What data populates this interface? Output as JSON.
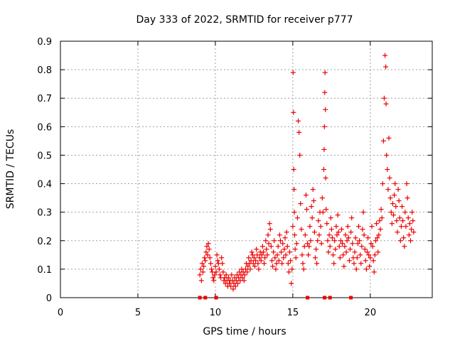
{
  "chart_data": {
    "type": "scatter",
    "title": "Day 333 of 2022, SRMTID for receiver p777",
    "xlabel": "GPS time / hours",
    "ylabel": "SRMTID / TECUs",
    "xlim": [
      0,
      24
    ],
    "ylim": [
      0,
      0.9
    ],
    "xticks": [
      0,
      5,
      10,
      15,
      20
    ],
    "yticks": [
      0,
      0.1,
      0.2,
      0.3,
      0.4,
      0.5,
      0.6,
      0.7,
      0.8,
      0.9
    ],
    "grid": true,
    "marker": "+",
    "color": "#ee0000",
    "gap_markers_x": [
      9.0,
      9.35,
      10.05,
      15.95,
      17.05,
      17.4,
      18.75
    ],
    "series": [
      {
        "name": "SRMTID",
        "points": [
          [
            9.0,
            0.08
          ],
          [
            9.05,
            0.1
          ],
          [
            9.1,
            0.06
          ],
          [
            9.15,
            0.12
          ],
          [
            9.2,
            0.09
          ],
          [
            9.25,
            0.11
          ],
          [
            9.3,
            0.14
          ],
          [
            9.35,
            0.13
          ],
          [
            9.4,
            0.16
          ],
          [
            9.45,
            0.18
          ],
          [
            9.5,
            0.15
          ],
          [
            9.55,
            0.19
          ],
          [
            9.6,
            0.17
          ],
          [
            9.65,
            0.14
          ],
          [
            9.7,
            0.12
          ],
          [
            9.75,
            0.1
          ],
          [
            9.8,
            0.09
          ],
          [
            9.85,
            0.07
          ],
          [
            9.9,
            0.06
          ],
          [
            9.95,
            0.08
          ],
          [
            10.0,
            0.11
          ],
          [
            10.05,
            0.09
          ],
          [
            10.1,
            0.15
          ],
          [
            10.15,
            0.13
          ],
          [
            10.2,
            0.12
          ],
          [
            10.25,
            0.1
          ],
          [
            10.3,
            0.08
          ],
          [
            10.35,
            0.07
          ],
          [
            10.4,
            0.14
          ],
          [
            10.45,
            0.12
          ],
          [
            10.5,
            0.09
          ],
          [
            10.55,
            0.06
          ],
          [
            10.6,
            0.07
          ],
          [
            10.65,
            0.05
          ],
          [
            10.7,
            0.08
          ],
          [
            10.75,
            0.06
          ],
          [
            10.8,
            0.04
          ],
          [
            10.85,
            0.07
          ],
          [
            10.9,
            0.05
          ],
          [
            10.95,
            0.06
          ],
          [
            11.0,
            0.04
          ],
          [
            11.05,
            0.08
          ],
          [
            11.1,
            0.06
          ],
          [
            11.15,
            0.03
          ],
          [
            11.2,
            0.05
          ],
          [
            11.25,
            0.07
          ],
          [
            11.3,
            0.04
          ],
          [
            11.35,
            0.06
          ],
          [
            11.4,
            0.08
          ],
          [
            11.45,
            0.05
          ],
          [
            11.5,
            0.07
          ],
          [
            11.55,
            0.09
          ],
          [
            11.6,
            0.06
          ],
          [
            11.65,
            0.08
          ],
          [
            11.7,
            0.1
          ],
          [
            11.75,
            0.07
          ],
          [
            11.8,
            0.09
          ],
          [
            11.85,
            0.06
          ],
          [
            11.9,
            0.08
          ],
          [
            11.95,
            0.1
          ],
          [
            12.0,
            0.12
          ],
          [
            12.05,
            0.09
          ],
          [
            12.1,
            0.11
          ],
          [
            12.15,
            0.14
          ],
          [
            12.2,
            0.12
          ],
          [
            12.25,
            0.1
          ],
          [
            12.3,
            0.13
          ],
          [
            12.35,
            0.16
          ],
          [
            12.4,
            0.15
          ],
          [
            12.45,
            0.12
          ],
          [
            12.5,
            0.14
          ],
          [
            12.55,
            0.11
          ],
          [
            12.6,
            0.13
          ],
          [
            12.65,
            0.17
          ],
          [
            12.7,
            0.15
          ],
          [
            12.75,
            0.12
          ],
          [
            12.8,
            0.1
          ],
          [
            12.85,
            0.14
          ],
          [
            12.9,
            0.16
          ],
          [
            12.95,
            0.13
          ],
          [
            13.0,
            0.15
          ],
          [
            13.05,
            0.18
          ],
          [
            13.1,
            0.16
          ],
          [
            13.15,
            0.12
          ],
          [
            13.2,
            0.14
          ],
          [
            13.25,
            0.2
          ],
          [
            13.3,
            0.17
          ],
          [
            13.35,
            0.15
          ],
          [
            13.4,
            0.22
          ],
          [
            13.45,
            0.19
          ],
          [
            13.5,
            0.26
          ],
          [
            13.55,
            0.24
          ],
          [
            13.6,
            0.18
          ],
          [
            13.65,
            0.13
          ],
          [
            13.7,
            0.11
          ],
          [
            13.75,
            0.16
          ],
          [
            13.8,
            0.2
          ],
          [
            13.85,
            0.14
          ],
          [
            13.9,
            0.1
          ],
          [
            13.95,
            0.12
          ],
          [
            14.0,
            0.15
          ],
          [
            14.05,
            0.18
          ],
          [
            14.1,
            0.13
          ],
          [
            14.15,
            0.22
          ],
          [
            14.2,
            0.2
          ],
          [
            14.25,
            0.16
          ],
          [
            14.3,
            0.12
          ],
          [
            14.35,
            0.19
          ],
          [
            14.4,
            0.14
          ],
          [
            14.45,
            0.17
          ],
          [
            14.5,
            0.21
          ],
          [
            14.55,
            0.15
          ],
          [
            14.6,
            0.23
          ],
          [
            14.65,
            0.18
          ],
          [
            14.7,
            0.12
          ],
          [
            14.75,
            0.09
          ],
          [
            14.8,
            0.16
          ],
          [
            14.85,
            0.13
          ],
          [
            14.9,
            0.05
          ],
          [
            14.95,
            0.1
          ],
          [
            15.0,
            0.25
          ],
          [
            15.02,
            0.79
          ],
          [
            15.04,
            0.65
          ],
          [
            15.06,
            0.45
          ],
          [
            15.08,
            0.38
          ],
          [
            15.1,
            0.3
          ],
          [
            15.12,
            0.22
          ],
          [
            15.15,
            0.17
          ],
          [
            15.2,
            0.14
          ],
          [
            15.25,
            0.19
          ],
          [
            15.3,
            0.28
          ],
          [
            15.35,
            0.62
          ],
          [
            15.4,
            0.58
          ],
          [
            15.45,
            0.5
          ],
          [
            15.5,
            0.33
          ],
          [
            15.55,
            0.24
          ],
          [
            15.6,
            0.15
          ],
          [
            15.65,
            0.12
          ],
          [
            15.7,
            0.1
          ],
          [
            15.75,
            0.18
          ],
          [
            15.8,
            0.22
          ],
          [
            15.85,
            0.36
          ],
          [
            15.9,
            0.31
          ],
          [
            15.95,
            0.19
          ],
          [
            16.0,
            0.15
          ],
          [
            16.05,
            0.18
          ],
          [
            16.1,
            0.25
          ],
          [
            16.15,
            0.2
          ],
          [
            16.2,
            0.32
          ],
          [
            16.25,
            0.28
          ],
          [
            16.3,
            0.38
          ],
          [
            16.35,
            0.34
          ],
          [
            16.4,
            0.23
          ],
          [
            16.45,
            0.14
          ],
          [
            16.5,
            0.17
          ],
          [
            16.55,
            0.12
          ],
          [
            16.6,
            0.2
          ],
          [
            16.65,
            0.27
          ],
          [
            16.7,
            0.22
          ],
          [
            16.75,
            0.3
          ],
          [
            16.8,
            0.25
          ],
          [
            16.85,
            0.19
          ],
          [
            16.9,
            0.35
          ],
          [
            16.95,
            0.3
          ],
          [
            17.0,
            0.45
          ],
          [
            17.02,
            0.52
          ],
          [
            17.04,
            0.6
          ],
          [
            17.06,
            0.72
          ],
          [
            17.08,
            0.79
          ],
          [
            17.1,
            0.66
          ],
          [
            17.12,
            0.42
          ],
          [
            17.15,
            0.31
          ],
          [
            17.2,
            0.26
          ],
          [
            17.25,
            0.2
          ],
          [
            17.3,
            0.16
          ],
          [
            17.35,
            0.22
          ],
          [
            17.4,
            0.18
          ],
          [
            17.45,
            0.28
          ],
          [
            17.5,
            0.24
          ],
          [
            17.55,
            0.21
          ],
          [
            17.6,
            0.15
          ],
          [
            17.65,
            0.12
          ],
          [
            17.7,
            0.2
          ],
          [
            17.75,
            0.17
          ],
          [
            17.8,
            0.25
          ],
          [
            17.85,
            0.22
          ],
          [
            17.9,
            0.29
          ],
          [
            17.95,
            0.23
          ],
          [
            18.0,
            0.18
          ],
          [
            18.05,
            0.14
          ],
          [
            18.1,
            0.2
          ],
          [
            18.15,
            0.24
          ],
          [
            18.2,
            0.19
          ],
          [
            18.25,
            0.15
          ],
          [
            18.3,
            0.11
          ],
          [
            18.35,
            0.18
          ],
          [
            18.4,
            0.22
          ],
          [
            18.45,
            0.16
          ],
          [
            18.5,
            0.2
          ],
          [
            18.55,
            0.25
          ],
          [
            18.6,
            0.21
          ],
          [
            18.65,
            0.13
          ],
          [
            18.7,
            0.17
          ],
          [
            18.75,
            0.23
          ],
          [
            18.8,
            0.28
          ],
          [
            18.85,
            0.19
          ],
          [
            18.9,
            0.14
          ],
          [
            18.95,
            0.12
          ],
          [
            19.0,
            0.16
          ],
          [
            19.05,
            0.21
          ],
          [
            19.1,
            0.1
          ],
          [
            19.15,
            0.14
          ],
          [
            19.2,
            0.19
          ],
          [
            19.25,
            0.25
          ],
          [
            19.3,
            0.2
          ],
          [
            19.35,
            0.15
          ],
          [
            19.4,
            0.12
          ],
          [
            19.45,
            0.18
          ],
          [
            19.5,
            0.24
          ],
          [
            19.55,
            0.3
          ],
          [
            19.6,
            0.22
          ],
          [
            19.65,
            0.17
          ],
          [
            19.7,
            0.13
          ],
          [
            19.75,
            0.1
          ],
          [
            19.8,
            0.16
          ],
          [
            19.85,
            0.21
          ],
          [
            19.9,
            0.15
          ],
          [
            19.95,
            0.11
          ],
          [
            20.0,
            0.14
          ],
          [
            20.05,
            0.19
          ],
          [
            20.1,
            0.25
          ],
          [
            20.15,
            0.18
          ],
          [
            20.2,
            0.13
          ],
          [
            20.25,
            0.09
          ],
          [
            20.3,
            0.15
          ],
          [
            20.35,
            0.2
          ],
          [
            20.4,
            0.26
          ],
          [
            20.45,
            0.21
          ],
          [
            20.5,
            0.16
          ],
          [
            20.55,
            0.22
          ],
          [
            20.6,
            0.27
          ],
          [
            20.65,
            0.24
          ],
          [
            20.7,
            0.31
          ],
          [
            20.75,
            0.28
          ],
          [
            20.8,
            0.4
          ],
          [
            20.85,
            0.55
          ],
          [
            20.9,
            0.7
          ],
          [
            20.95,
            0.85
          ],
          [
            21.0,
            0.81
          ],
          [
            21.02,
            0.68
          ],
          [
            21.05,
            0.5
          ],
          [
            21.1,
            0.45
          ],
          [
            21.15,
            0.38
          ],
          [
            21.2,
            0.56
          ],
          [
            21.25,
            0.42
          ],
          [
            21.3,
            0.35
          ],
          [
            21.35,
            0.3
          ],
          [
            21.4,
            0.26
          ],
          [
            21.45,
            0.33
          ],
          [
            21.5,
            0.29
          ],
          [
            21.55,
            0.36
          ],
          [
            21.6,
            0.4
          ],
          [
            21.65,
            0.32
          ],
          [
            21.7,
            0.27
          ],
          [
            21.75,
            0.23
          ],
          [
            21.8,
            0.38
          ],
          [
            21.85,
            0.34
          ],
          [
            21.9,
            0.28
          ],
          [
            21.95,
            0.2
          ],
          [
            22.0,
            0.25
          ],
          [
            22.05,
            0.32
          ],
          [
            22.1,
            0.27
          ],
          [
            22.15,
            0.21
          ],
          [
            22.2,
            0.18
          ],
          [
            22.25,
            0.3
          ],
          [
            22.3,
            0.25
          ],
          [
            22.35,
            0.4
          ],
          [
            22.4,
            0.35
          ],
          [
            22.45,
            0.28
          ],
          [
            22.5,
            0.22
          ],
          [
            22.55,
            0.26
          ],
          [
            22.6,
            0.2
          ],
          [
            22.65,
            0.24
          ],
          [
            22.7,
            0.3
          ],
          [
            22.75,
            0.27
          ],
          [
            22.8,
            0.23
          ]
        ]
      }
    ]
  }
}
